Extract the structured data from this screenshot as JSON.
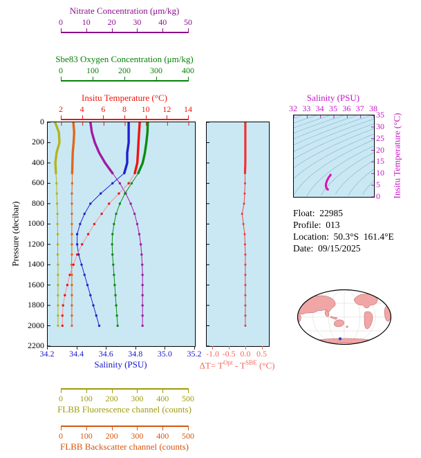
{
  "colors": {
    "plot_bg": "#c9e8f4",
    "frame": "#000000",
    "contour": "#76a8bf"
  },
  "axes": {
    "nitrate": {
      "label": "Nitrate Concentration (μm/kg)",
      "color": "#8c0d8c",
      "ticks": [
        "0",
        "10",
        "20",
        "30",
        "40",
        "50"
      ],
      "tick_values": [
        0,
        10,
        20,
        30,
        40,
        50
      ],
      "range": [
        0,
        50
      ]
    },
    "oxygen": {
      "label": "Sbe83 Oxygen Concentration (μm/kg)",
      "color": "#078007",
      "ticks": [
        "0",
        "100",
        "200",
        "300",
        "400"
      ],
      "tick_values": [
        0,
        100,
        200,
        300,
        400
      ],
      "range": [
        0,
        400
      ]
    },
    "temperature": {
      "label": "Insitu Temperature (°C)",
      "color": "#ee1408",
      "ticks": [
        "2",
        "4",
        "6",
        "8",
        "10",
        "12",
        "14"
      ],
      "tick_values": [
        2,
        4,
        6,
        8,
        10,
        12,
        14
      ],
      "range": [
        2,
        14
      ]
    },
    "pressure": {
      "label": "Pressure (decibar)",
      "color": "#000000",
      "ticks": [
        "0",
        "200",
        "400",
        "600",
        "800",
        "1000",
        "1200",
        "1400",
        "1600",
        "1800",
        "2000",
        "2200"
      ],
      "tick_values": [
        0,
        200,
        400,
        600,
        800,
        1000,
        1200,
        1400,
        1600,
        1800,
        2000,
        2200
      ],
      "range": [
        0,
        2200
      ]
    },
    "salinity": {
      "label": "Salinity (PSU)",
      "color": "#1515cd",
      "ticks": [
        "34.2",
        "34.4",
        "34.6",
        "34.8",
        "35.0",
        "35.2"
      ],
      "tick_values": [
        34.2,
        34.4,
        34.6,
        34.8,
        35.0,
        35.2
      ],
      "range": [
        34.2,
        35.2
      ]
    },
    "delta_t": {
      "color": "#f4655c",
      "label_parts": {
        "prefix": "ΔT= T",
        "sup1": "Opt",
        "mid": " - T",
        "sup2": "SBE",
        "suffix": " (°C)"
      },
      "ticks": [
        "-1.0",
        "-0.5",
        "0.0",
        "0.5"
      ],
      "tick_values": [
        -1.0,
        -0.5,
        0.0,
        0.5
      ],
      "range": [
        -1.2,
        0.7
      ]
    },
    "ts_salinity": {
      "label": "Salinity (PSU)",
      "color": "#c713c7",
      "ticks": [
        "32",
        "33",
        "34",
        "35",
        "36",
        "37",
        "38"
      ],
      "tick_values": [
        32,
        33,
        34,
        35,
        36,
        37,
        38
      ],
      "range": [
        32,
        38
      ]
    },
    "ts_temperature": {
      "label": "Insitu Temperature (°C)",
      "color": "#c713c7",
      "ticks": [
        "0",
        "5",
        "10",
        "15",
        "20",
        "25",
        "30",
        "35"
      ],
      "tick_values": [
        0,
        5,
        10,
        15,
        20,
        25,
        30,
        35
      ],
      "range": [
        0,
        35
      ]
    },
    "fluorescence": {
      "label": "FLBB Fluorescence channel (counts)",
      "color": "#9c9c08",
      "ticks": [
        "0",
        "100",
        "200",
        "300",
        "400",
        "500"
      ],
      "tick_values": [
        0,
        100,
        200,
        300,
        400,
        500
      ],
      "range": [
        0,
        500
      ]
    },
    "backscatter": {
      "label": "FLBB Backscatter channel (counts)",
      "color": "#d5560b",
      "ticks": [
        "0",
        "100",
        "200",
        "300",
        "400",
        "500"
      ],
      "tick_values": [
        0,
        100,
        200,
        300,
        400,
        500
      ],
      "range": [
        0,
        500
      ]
    }
  },
  "info": {
    "lines": [
      "Float:  22985",
      "Profile:  013",
      "Location:  50.3°S  161.4°E",
      "Date:  09/15/2025"
    ]
  },
  "map": {
    "ocean": "#ffffff",
    "land": "#f1a6a6",
    "land_outline": "#b65353",
    "outline": "#000000",
    "marker_color": "#2244cc",
    "marker": {
      "lat": -50.3,
      "lon": 161.4
    }
  },
  "chart_data": [
    {
      "id": "main-profile",
      "type": "line",
      "title": "BGC float vertical profiles",
      "ylabel": "Pressure (decibar)",
      "ylim": [
        0,
        2200
      ],
      "grid": false,
      "pressure": [
        0,
        100,
        200,
        300,
        400,
        500,
        600,
        700,
        800,
        900,
        1000,
        1100,
        1200,
        1300,
        1400,
        1500,
        1600,
        1700,
        1800,
        1900,
        2000
      ],
      "series": [
        {
          "name": "FLBB Fluorescence channel",
          "units": "counts",
          "color": "#b4b41e",
          "axis_range": [
            0,
            500
          ],
          "values": [
            25,
            38,
            40,
            30,
            26,
            28,
            30,
            31,
            32,
            33,
            33,
            34,
            34,
            34,
            35,
            35,
            35,
            35,
            35,
            35,
            35
          ]
        },
        {
          "name": "FLBB Backscatter channel",
          "units": "counts",
          "color": "#e2661a",
          "axis_range": [
            0,
            500
          ],
          "values": [
            87,
            90,
            88,
            85,
            84,
            83,
            83,
            82,
            82,
            82,
            82,
            82,
            82,
            82,
            81,
            82,
            82,
            82,
            82,
            82,
            82
          ]
        },
        {
          "name": "Nitrate Concentration",
          "units": "μm/kg",
          "color": "#a21ba2",
          "axis_range": [
            0,
            50
          ],
          "values": [
            14.5,
            15,
            16,
            17.5,
            19.5,
            22,
            24.5,
            26.5,
            28.2,
            29.5,
            30.4,
            31.1,
            31.6,
            31.9,
            32.1,
            32.2,
            32.2,
            32.2,
            32.2,
            32.2,
            32.2
          ]
        },
        {
          "name": "Sbe83 Oxygen Concentration",
          "units": "μm/kg",
          "color": "#0f8a0f",
          "axis_range": [
            0,
            400
          ],
          "values": [
            272,
            271,
            268,
            264,
            258,
            246,
            228,
            210,
            196,
            186,
            180,
            176,
            175,
            176,
            178,
            180,
            182,
            184,
            186,
            188,
            190
          ]
        },
        {
          "name": "Salinity",
          "units": "PSU",
          "color": "#2121cf",
          "axis_range": [
            34.2,
            35.2
          ],
          "values": [
            34.75,
            34.75,
            34.75,
            34.74,
            34.74,
            34.72,
            34.64,
            34.56,
            34.49,
            34.45,
            34.42,
            34.4,
            34.4,
            34.41,
            34.43,
            34.45,
            34.47,
            34.49,
            34.51,
            34.53,
            34.55
          ]
        },
        {
          "name": "Insitu Temperature",
          "units": "°C",
          "color": "#f21111",
          "deep_color": "#fb8f8f",
          "axis_range": [
            2,
            14
          ],
          "values": [
            9.5,
            9.45,
            9.4,
            9.35,
            9.3,
            9.1,
            8.6,
            7.8,
            7.0,
            6.4,
            5.8,
            5.3,
            4.8,
            4.4,
            4.1,
            3.8,
            3.6,
            3.4,
            3.25,
            3.2,
            3.2
          ]
        }
      ]
    },
    {
      "id": "delta-t-profile",
      "type": "line",
      "xlabel": "ΔT= T^Opt - T^SBE (°C)",
      "xlim": [
        -1.2,
        0.7
      ],
      "color": "#f23030",
      "pressure": [
        0,
        100,
        200,
        300,
        400,
        500,
        600,
        700,
        800,
        900,
        1000,
        1100,
        1200,
        1300,
        1400,
        1500,
        1600,
        1700,
        1800,
        1900,
        2000
      ],
      "values": [
        -0.02,
        -0.02,
        -0.02,
        -0.02,
        -0.02,
        -0.03,
        -0.03,
        -0.04,
        -0.06,
        -0.12,
        -0.08,
        -0.04,
        -0.03,
        -0.02,
        -0.02,
        -0.02,
        -0.02,
        -0.02,
        -0.02,
        -0.02,
        -0.02
      ]
    },
    {
      "id": "ts-diagram",
      "type": "line",
      "color": "#d915b5",
      "xlabel": "Salinity (PSU)",
      "ylabel": "Insitu Temperature (°C)",
      "xlim": [
        32,
        38
      ],
      "ylim": [
        0,
        35
      ],
      "note": "temperature-salinity curve with background isopycnal contours",
      "salinity": [
        34.75,
        34.75,
        34.75,
        34.74,
        34.74,
        34.72,
        34.64,
        34.56,
        34.49,
        34.45,
        34.42,
        34.4,
        34.4,
        34.41,
        34.43,
        34.45,
        34.47,
        34.49,
        34.51,
        34.53,
        34.55
      ],
      "temperature": [
        9.5,
        9.45,
        9.4,
        9.35,
        9.3,
        9.1,
        8.6,
        7.8,
        7.0,
        6.4,
        5.8,
        5.3,
        4.8,
        4.4,
        4.1,
        3.8,
        3.6,
        3.4,
        3.25,
        3.2,
        3.2
      ]
    }
  ]
}
